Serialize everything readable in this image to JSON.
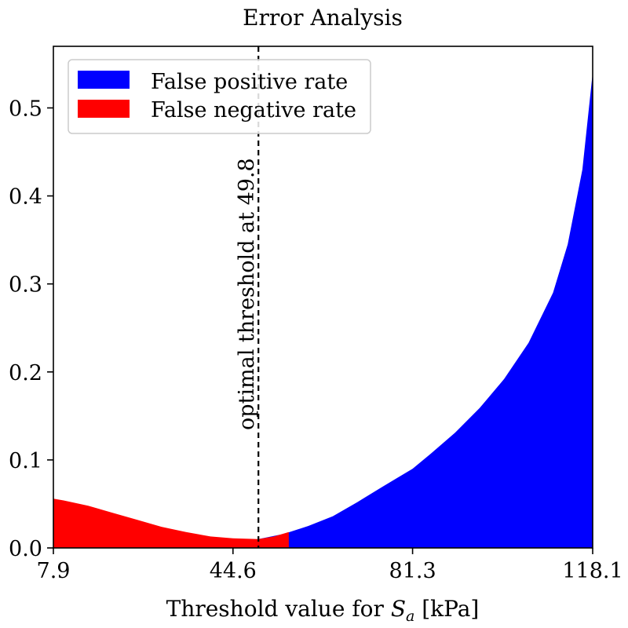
{
  "chart_data": {
    "type": "area",
    "title": "Error Analysis",
    "xlabel": "Threshold value for ",
    "xlabel_symbol": "S",
    "xlabel_subscript": "a",
    "xlabel_unit": " [kPa]",
    "xlim": [
      7.9,
      118.1
    ],
    "ylim": [
      0,
      0.57
    ],
    "x_ticks": [
      7.9,
      44.6,
      81.3,
      118.1
    ],
    "x_tick_labels": [
      "7.9",
      "44.6",
      "81.3",
      "118.1"
    ],
    "y_ticks": [
      0.0,
      0.1,
      0.2,
      0.3,
      0.4,
      0.5
    ],
    "y_tick_labels": [
      "0.0",
      "0.1",
      "0.2",
      "0.3",
      "0.4",
      "0.5"
    ],
    "grid": false,
    "legend_position": "top-left",
    "series": [
      {
        "name": "False positive rate",
        "color": "#0000ff",
        "x": [
          7.9,
          35,
          40,
          44.6,
          49.8,
          55,
          60,
          65,
          70,
          75,
          81.3,
          85,
          90,
          95,
          100,
          105,
          110,
          113,
          116,
          118.1
        ],
        "values": [
          0.0,
          0.0,
          0.002,
          0.005,
          0.01,
          0.016,
          0.025,
          0.036,
          0.052,
          0.069,
          0.09,
          0.107,
          0.131,
          0.159,
          0.192,
          0.233,
          0.29,
          0.345,
          0.43,
          0.54
        ]
      },
      {
        "name": "False negative rate",
        "color": "#ff0000",
        "x": [
          7.9,
          10,
          15,
          20,
          25,
          30,
          35,
          40,
          44.6,
          49.8,
          53,
          56
        ],
        "values": [
          0.056,
          0.054,
          0.048,
          0.04,
          0.032,
          0.024,
          0.018,
          0.013,
          0.011,
          0.01,
          0.013,
          0.018
        ]
      }
    ],
    "annotations": [
      {
        "type": "vline",
        "x": 49.8,
        "style": "dashed",
        "label": "optimal threshold at 49.8"
      }
    ]
  }
}
